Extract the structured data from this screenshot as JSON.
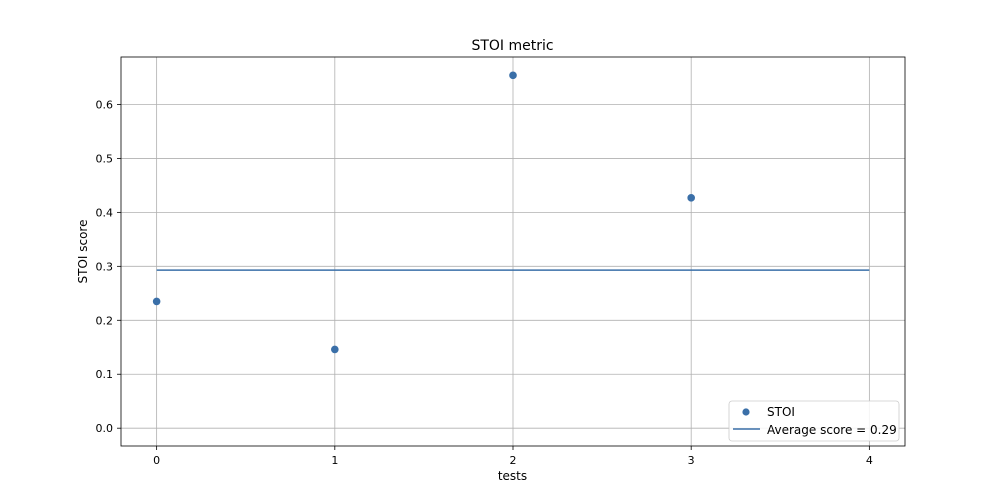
{
  "chart_data": {
    "type": "scatter",
    "title": "STOI metric",
    "xlabel": "tests",
    "ylabel": "STOI score",
    "xlim": [
      -0.2,
      4.2
    ],
    "ylim": [
      -0.033,
      0.688
    ],
    "xticks": [
      0,
      1,
      2,
      3,
      4
    ],
    "yticks": [
      0.0,
      0.1,
      0.2,
      0.3,
      0.4,
      0.5,
      0.6
    ],
    "xtick_labels": [
      "0",
      "1",
      "2",
      "3",
      "4"
    ],
    "ytick_labels": [
      "0.0",
      "0.1",
      "0.2",
      "0.3",
      "0.4",
      "0.5",
      "0.6"
    ],
    "grid": true,
    "legend_position": "bottom-right",
    "series": [
      {
        "name": "STOI",
        "kind": "scatter",
        "color": "#3a6fa8",
        "x": [
          0,
          1,
          2,
          3
        ],
        "y": [
          0.235,
          0.146,
          0.654,
          0.427
        ]
      },
      {
        "name": "Average score = 0.29",
        "kind": "line",
        "color": "#3a6fa8",
        "x": [
          0,
          4
        ],
        "y": [
          0.293,
          0.293
        ]
      }
    ]
  }
}
